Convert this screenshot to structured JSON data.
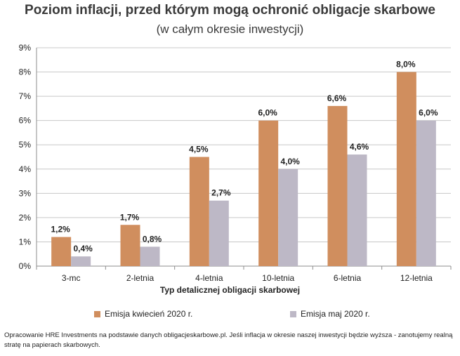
{
  "chart_data": {
    "type": "bar",
    "title": "Poziom inflacji, przed którym mogą ochronić obligacje skarbowe",
    "subtitle": "(w całym okresie inwestycji)",
    "xlabel": "Typ detalicznej obligacji skarbowej",
    "ylabel": "",
    "categories": [
      "3-mc",
      "2-letnia",
      "4-letnia",
      "10-letnia",
      "6-letnia",
      "12-letnia"
    ],
    "series": [
      {
        "name": "Emisja kwiecień 2020 r.",
        "values": [
          1.2,
          1.7,
          4.5,
          6.0,
          6.6,
          8.0
        ],
        "labels": [
          "1,2%",
          "1,7%",
          "4,5%",
          "6,0%",
          "6,6%",
          "8,0%"
        ],
        "color": "#D08E5E"
      },
      {
        "name": "Emisja maj 2020 r.",
        "values": [
          0.4,
          0.8,
          2.7,
          4.0,
          4.6,
          6.0
        ],
        "labels": [
          "0,4%",
          "0,8%",
          "2,7%",
          "4,0%",
          "4,6%",
          "6,0%"
        ],
        "color": "#BDB8C6"
      }
    ],
    "ylim": [
      0,
      9
    ],
    "yticks": [
      "0%",
      "1%",
      "2%",
      "3%",
      "4%",
      "5%",
      "6%",
      "7%",
      "8%",
      "9%"
    ],
    "grid": true,
    "legend": "bottom"
  },
  "footnote": "Opracowanie HRE Investments na podstawie danych obligacjeskarbowe.pl. Jeśli inflacja w okresie naszej inwestycji będzie wyższa - zanotujemy realną stratę na papierach skarbowych.",
  "colors": {
    "grid": "#C8C8C8",
    "axis": "#8C8C8C"
  }
}
